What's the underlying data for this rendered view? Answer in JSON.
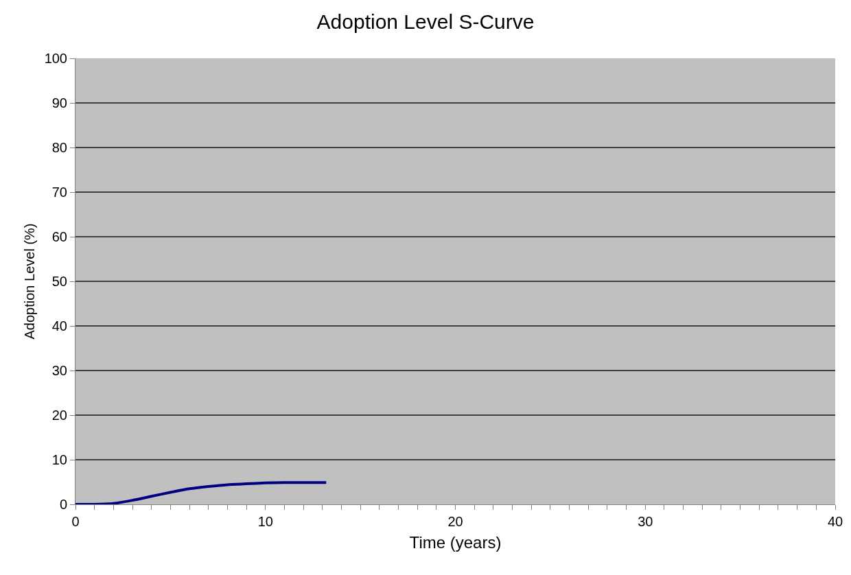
{
  "chart_data": {
    "type": "line",
    "title": "Adoption Level S-Curve",
    "xlabel": "Time (years)",
    "ylabel": "Adoption Level (%)",
    "x": [
      0,
      1,
      2,
      3,
      4,
      5,
      6,
      7,
      8,
      9,
      10,
      11,
      12,
      13.2
    ],
    "series": [
      {
        "color": "#000080",
        "values": [
          0,
          0,
          0.2,
          0.9,
          1.8,
          2.7,
          3.5,
          4.0,
          4.4,
          4.6,
          4.8,
          4.9,
          4.9,
          4.9
        ]
      }
    ],
    "xlim": [
      0,
      40
    ],
    "xticks": [
      0,
      {
        "value": 1,
        "label": null
      },
      {
        "value": 2,
        "label": null
      },
      {
        "value": 3,
        "label": null
      },
      {
        "value": 4,
        "label": null
      },
      {
        "value": 5,
        "label": null
      },
      {
        "value": 6,
        "label": null
      },
      {
        "value": 7,
        "label": null
      },
      {
        "value": 8,
        "label": null
      },
      {
        "value": 9,
        "label": null
      },
      10,
      {
        "value": 11,
        "label": null
      },
      {
        "value": 12,
        "label": null
      },
      {
        "value": 13,
        "label": null
      },
      {
        "value": 14,
        "label": null
      },
      {
        "value": 15,
        "label": null
      },
      {
        "value": 16,
        "label": null
      },
      {
        "value": 17,
        "label": null
      },
      {
        "value": 18,
        "label": null
      },
      {
        "value": 19,
        "label": null
      },
      20,
      {
        "value": 21,
        "label": null
      },
      {
        "value": 22,
        "label": null
      },
      {
        "value": 23,
        "label": null
      },
      {
        "value": 24,
        "label": null
      },
      {
        "value": 25,
        "label": null
      },
      {
        "value": 26,
        "label": null
      },
      {
        "value": 27,
        "label": null
      },
      {
        "value": 28,
        "label": null
      },
      {
        "value": 29,
        "label": null
      },
      30,
      {
        "value": 31,
        "label": null
      },
      {
        "value": 32,
        "label": null
      },
      {
        "value": 33,
        "label": null
      },
      {
        "value": 34,
        "label": null
      },
      {
        "value": 35,
        "label": null
      },
      {
        "value": 36,
        "label": null
      },
      {
        "value": 37,
        "label": null
      },
      {
        "value": 38,
        "label": null
      },
      {
        "value": 39,
        "label": null
      },
      40
    ],
    "ylim": [
      0,
      100
    ],
    "yticks": [
      0,
      10,
      20,
      30,
      40,
      50,
      60,
      70,
      80,
      90,
      100
    ],
    "grid": "y",
    "marker": "none",
    "line_style": "solid"
  }
}
